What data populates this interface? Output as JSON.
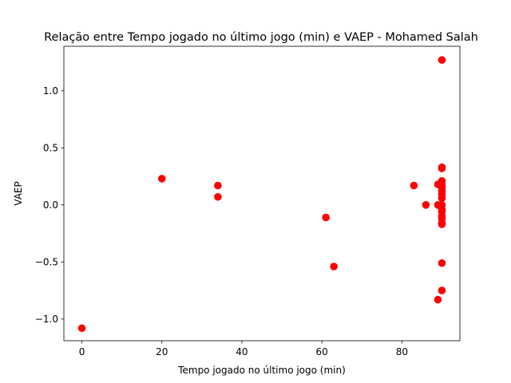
{
  "chart_data": {
    "type": "scatter",
    "title": "Relação entre Tempo jogado no último jogo (min) e VAEP - Mohamed Salah",
    "xlabel": "Tempo jogado no último jogo (min)",
    "ylabel": "VAEP",
    "xlim": [
      -4.5,
      94.5
    ],
    "ylim": [
      -1.19,
      1.39
    ],
    "xticks": [
      0,
      20,
      40,
      60,
      80
    ],
    "yticks": [
      -1.0,
      -0.5,
      0.0,
      0.5,
      1.0
    ],
    "xtick_labels": [
      "0",
      "20",
      "40",
      "60",
      "80"
    ],
    "ytick_labels": [
      "−1.0",
      "−0.5",
      "0.0",
      "0.5",
      "1.0"
    ],
    "grid": false,
    "legend": "none",
    "marker_color": "#ff0000",
    "points": [
      {
        "x": 0,
        "y": -1.08
      },
      {
        "x": 20,
        "y": 0.23
      },
      {
        "x": 34,
        "y": 0.17
      },
      {
        "x": 34,
        "y": 0.07
      },
      {
        "x": 61,
        "y": -0.11
      },
      {
        "x": 63,
        "y": -0.54
      },
      {
        "x": 83,
        "y": 0.17
      },
      {
        "x": 86,
        "y": 0.0
      },
      {
        "x": 89,
        "y": 0.18
      },
      {
        "x": 89,
        "y": 0.0
      },
      {
        "x": 89,
        "y": -0.83
      },
      {
        "x": 90,
        "y": 1.27
      },
      {
        "x": 90,
        "y": 0.33
      },
      {
        "x": 90,
        "y": 0.32
      },
      {
        "x": 90,
        "y": 0.21
      },
      {
        "x": 90,
        "y": 0.18
      },
      {
        "x": 90,
        "y": 0.15
      },
      {
        "x": 90,
        "y": 0.12
      },
      {
        "x": 90,
        "y": 0.09
      },
      {
        "x": 90,
        "y": 0.06
      },
      {
        "x": 90,
        "y": 0.0
      },
      {
        "x": 90,
        "y": -0.04
      },
      {
        "x": 90,
        "y": -0.06
      },
      {
        "x": 90,
        "y": -0.1
      },
      {
        "x": 90,
        "y": -0.12
      },
      {
        "x": 90,
        "y": -0.16
      },
      {
        "x": 90,
        "y": -0.17
      },
      {
        "x": 90,
        "y": -0.51
      },
      {
        "x": 90,
        "y": -0.75
      }
    ]
  }
}
